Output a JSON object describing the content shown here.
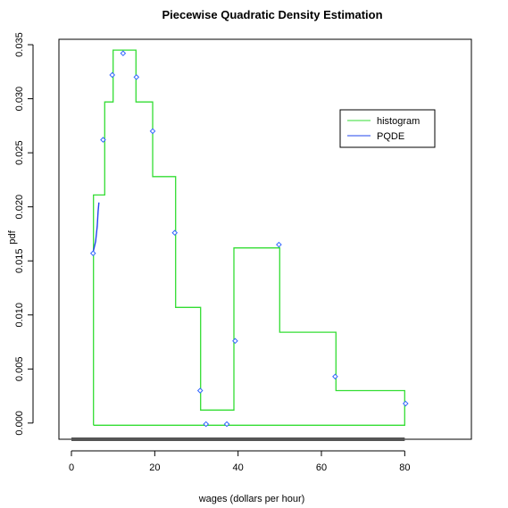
{
  "chart_data": {
    "type": "line",
    "title": "Piecewise Quadratic Density Estimation",
    "xlabel": "wages (dollars per hour)",
    "ylabel": "pdf",
    "xlim": [
      -3,
      96
    ],
    "ylim": [
      -0.0015,
      0.0355
    ],
    "x_ticks": [
      0,
      20,
      40,
      60,
      80
    ],
    "x_tick_labels": [
      "0",
      "20",
      "40",
      "60",
      "80"
    ],
    "y_ticks": [
      0.0,
      0.005,
      0.01,
      0.015,
      0.02,
      0.025,
      0.03,
      0.035
    ],
    "y_tick_labels": [
      "0.000",
      "0.005",
      "0.010",
      "0.015",
      "0.020",
      "0.025",
      "0.030",
      "0.035"
    ],
    "grid": false,
    "legend_position": "top-right",
    "colors": {
      "histogram": "#33dd33",
      "pqde": "#2244ee",
      "markers": "#3366ff",
      "axis": "#000000",
      "rug": "#555555"
    },
    "series": [
      {
        "name": "histogram",
        "kind": "step",
        "x": [
          5.3,
          5.3,
          8,
          8,
          10,
          10,
          15.5,
          15.5,
          19.5,
          19.5,
          25,
          25,
          31,
          31,
          39,
          39,
          50,
          50,
          63.5,
          63.5,
          80,
          80,
          5.3
        ],
        "y": [
          -0.0002,
          0.0211,
          0.0211,
          0.0297,
          0.0297,
          0.0345,
          0.0345,
          0.0297,
          0.0297,
          0.0228,
          0.0228,
          0.0107,
          0.0107,
          0.0012,
          0.0012,
          0.0162,
          0.0162,
          0.0084,
          0.0084,
          0.003,
          0.003,
          -0.0002,
          -0.0002
        ]
      },
      {
        "name": "PQDE",
        "kind": "line",
        "x": [
          5.2,
          5.5,
          5.8,
          6.0,
          6.2,
          6.4,
          6.6
        ],
        "y": [
          0.0158,
          0.0163,
          0.0168,
          0.0175,
          0.0182,
          0.0196,
          0.0204
        ]
      }
    ],
    "points": {
      "x": [
        5.2,
        7.6,
        9.8,
        12.4,
        15.6,
        19.5,
        24.8,
        30.9,
        32.3,
        37.3,
        39.3,
        49.8,
        63.3,
        80.2
      ],
      "y": [
        0.0157,
        0.0262,
        0.0322,
        0.0342,
        0.032,
        0.027,
        0.0176,
        0.003,
        -0.0001,
        -0.0001,
        0.0076,
        0.0165,
        0.0043,
        0.0018
      ]
    },
    "rug": {
      "x_start": 0,
      "x_end": 80
    }
  }
}
